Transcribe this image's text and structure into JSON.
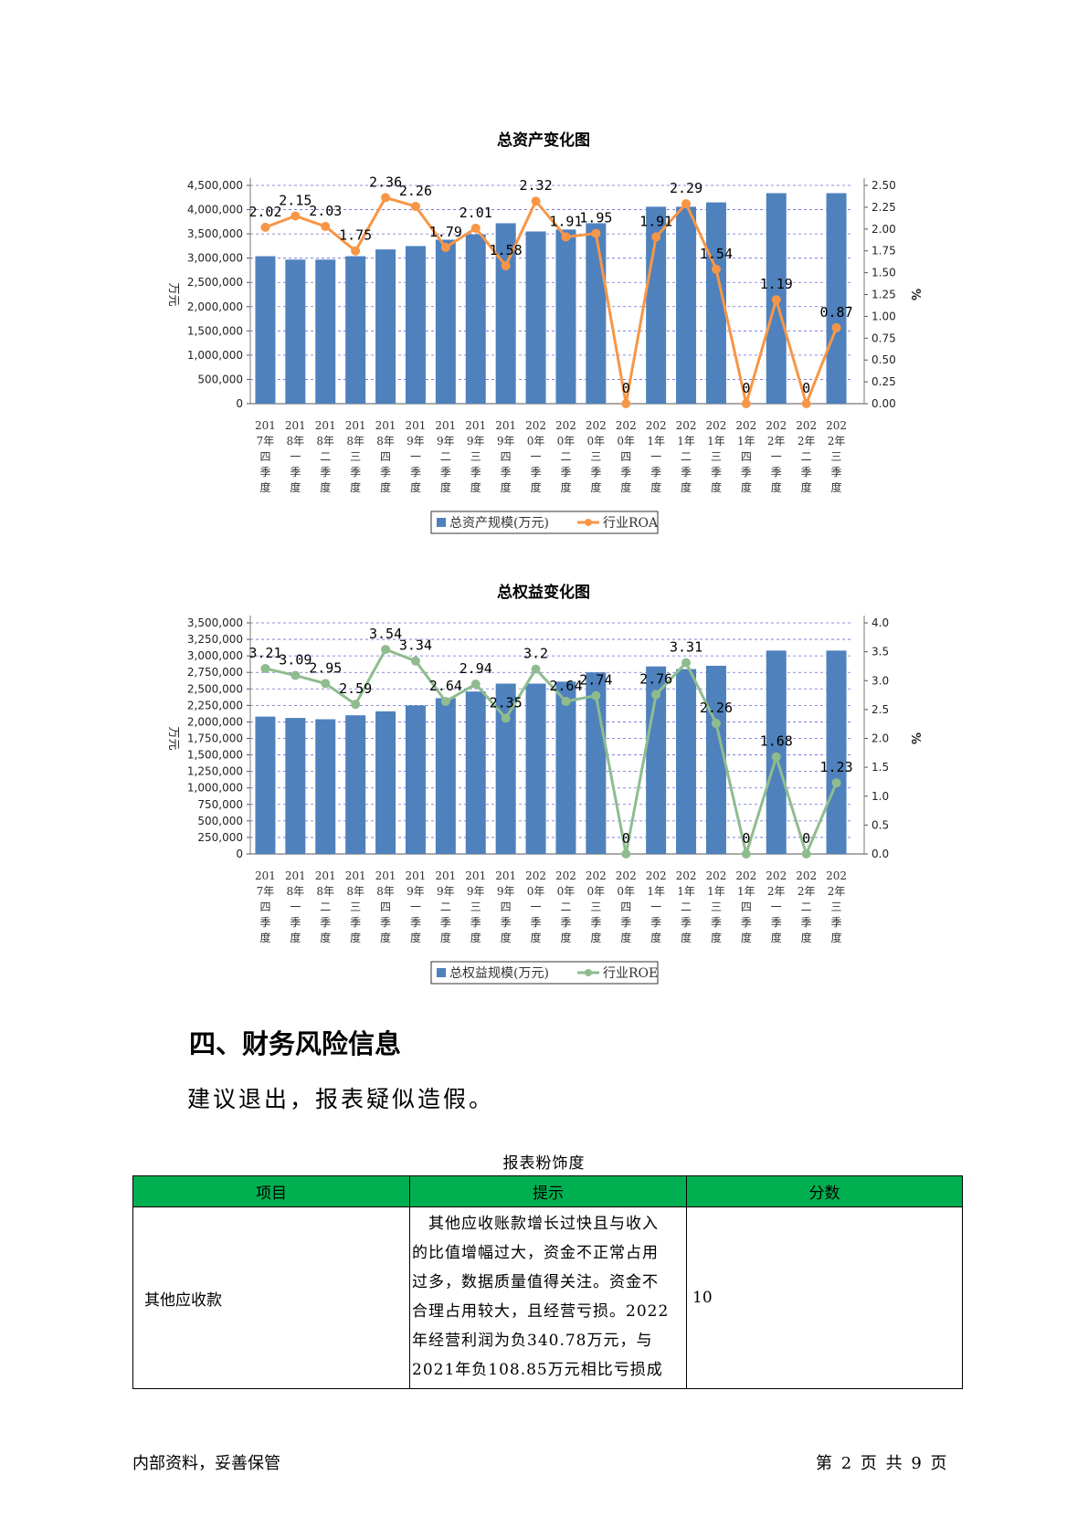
{
  "chart_data": [
    {
      "type": "bar",
      "title": "总资产变化图",
      "ylabel": "万元",
      "y2label": "%",
      "ylim": [
        0,
        4500000
      ],
      "y2lim": [
        0,
        2.5
      ],
      "yticks": [
        "0",
        "500,000",
        "1,000,000",
        "1,500,000",
        "2,000,000",
        "2,500,000",
        "3,000,000",
        "3,500,000",
        "4,000,000",
        "4,500,000"
      ],
      "y2ticks": [
        "0.00",
        "0.25",
        "0.50",
        "0.75",
        "1.00",
        "1.25",
        "1.50",
        "1.75",
        "2.00",
        "2.25",
        "2.50"
      ],
      "categories": [
        "2017年四季度",
        "2018年一季度",
        "2018年二季度",
        "2018年三季度",
        "2018年四季度",
        "2019年一季度",
        "2019年二季度",
        "2019年三季度",
        "2019年四季度",
        "2020年一季度",
        "2020年二季度",
        "2020年三季度",
        "2020年四季度",
        "2021年一季度",
        "2021年二季度",
        "2021年三季度",
        "2021年四季度",
        "2022年一季度",
        "2022年二季度",
        "2022年三季度"
      ],
      "series": [
        {
          "name": "总资产规模(万元)",
          "kind": "bar",
          "color": "#4f81bd",
          "values": [
            3040000,
            2970000,
            2970000,
            3040000,
            3180000,
            3250000,
            3380000,
            3490000,
            3720000,
            3550000,
            3590000,
            3720000,
            null,
            4060000,
            4060000,
            4150000,
            null,
            4340000,
            null,
            4340000
          ]
        },
        {
          "name": "行业ROA",
          "kind": "line",
          "color": "#f79646",
          "values": [
            2.02,
            2.15,
            2.03,
            1.75,
            2.36,
            2.26,
            1.79,
            2.01,
            1.58,
            2.32,
            1.91,
            1.95,
            0,
            1.91,
            2.29,
            1.54,
            0,
            1.19,
            0,
            0.87
          ],
          "labels": [
            "2.02",
            "2.15",
            "2.03",
            "1.75",
            "2.36",
            "2.26",
            "1.79",
            "2.01",
            "1.58",
            "2.32",
            "1.91",
            "1.95",
            "0",
            "1.91",
            "2.29",
            "1.54",
            "0",
            "1.19",
            "0",
            "0.87"
          ]
        }
      ],
      "legend": "bottom",
      "grid": true
    },
    {
      "type": "bar",
      "title": "总权益变化图",
      "ylabel": "万元",
      "y2label": "%",
      "ylim": [
        0,
        3500000
      ],
      "y2lim": [
        0,
        4.0
      ],
      "yticks": [
        "0",
        "250,000",
        "500,000",
        "750,000",
        "1,000,000",
        "1,250,000",
        "1,500,000",
        "1,750,000",
        "2,000,000",
        "2,250,000",
        "2,500,000",
        "2,750,000",
        "3,000,000",
        "3,250,000",
        "3,500,000"
      ],
      "y2ticks": [
        "0.0",
        "0.5",
        "1.0",
        "1.5",
        "2.0",
        "2.5",
        "3.0",
        "3.5",
        "4.0"
      ],
      "categories": [
        "2017年四季度",
        "2018年一季度",
        "2018年二季度",
        "2018年三季度",
        "2018年四季度",
        "2019年一季度",
        "2019年二季度",
        "2019年三季度",
        "2019年四季度",
        "2020年一季度",
        "2020年二季度",
        "2020年三季度",
        "2020年四季度",
        "2021年一季度",
        "2021年二季度",
        "2021年三季度",
        "2021年四季度",
        "2022年一季度",
        "2022年二季度",
        "2022年三季度"
      ],
      "series": [
        {
          "name": "总权益规模(万元)",
          "kind": "bar",
          "color": "#4f81bd",
          "values": [
            2080000,
            2060000,
            2040000,
            2100000,
            2160000,
            2250000,
            2360000,
            2460000,
            2580000,
            2580000,
            2610000,
            2750000,
            null,
            2840000,
            2800000,
            2850000,
            null,
            3080000,
            null,
            3080000
          ]
        },
        {
          "name": "行业ROE",
          "kind": "line",
          "color": "#8fbc8f",
          "values": [
            3.21,
            3.09,
            2.95,
            2.59,
            3.54,
            3.34,
            2.64,
            2.94,
            2.35,
            3.2,
            2.64,
            2.74,
            0,
            2.76,
            3.31,
            2.26,
            0,
            1.68,
            0,
            1.23
          ],
          "labels": [
            "3.21",
            "3.09",
            "2.95",
            "2.59",
            "3.54",
            "3.34",
            "2.64",
            "2.94",
            "2.35",
            "3.2",
            "2.64",
            "2.74",
            "0",
            "2.76",
            "3.31",
            "2.26",
            "0",
            "1.68",
            "0",
            "1.23"
          ]
        }
      ],
      "legend": "bottom",
      "grid": true
    }
  ],
  "section": {
    "heading": "四、财务风险信息",
    "paragraph": "建议退出，报表疑似造假。"
  },
  "table": {
    "caption": "报表粉饰度",
    "headers": [
      "项目",
      "提示",
      "分数"
    ],
    "header_color": "#00b050",
    "rows": [
      {
        "item": "其他应收款",
        "hint_lines": [
          "　其他应收账款增长过快且与收入",
          "的比值增幅过大，资金不正常占用",
          "过多，数据质量值得关注。资金不",
          "合理占用较大，且经营亏损。2022",
          "年经营利润为负340.78万元，与",
          "2021年负108.85万元相比亏损成"
        ],
        "score": "10"
      }
    ]
  },
  "footer": {
    "left": "内部资料，妥善保管",
    "right": "第 2 页  共 9 页"
  }
}
